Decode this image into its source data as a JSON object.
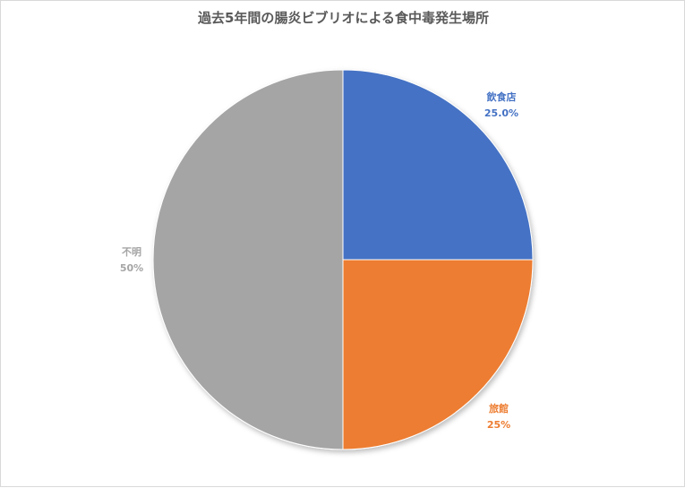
{
  "chart_data": {
    "type": "pie",
    "title": "過去5年間の腸炎ビブリオによる食中毒発生場所",
    "slices": [
      {
        "name": "飲食店",
        "value": 25.0,
        "label": "25.0%",
        "color": "#4472C4"
      },
      {
        "name": "旅館",
        "value": 25,
        "label": "25%",
        "color": "#ED7D31"
      },
      {
        "name": "不明",
        "value": 50,
        "label": "50%",
        "color": "#A5A5A5"
      }
    ],
    "start_angle": "12 o'clock",
    "direction": "clockwise",
    "legend": "none (data labels outside slices)"
  }
}
